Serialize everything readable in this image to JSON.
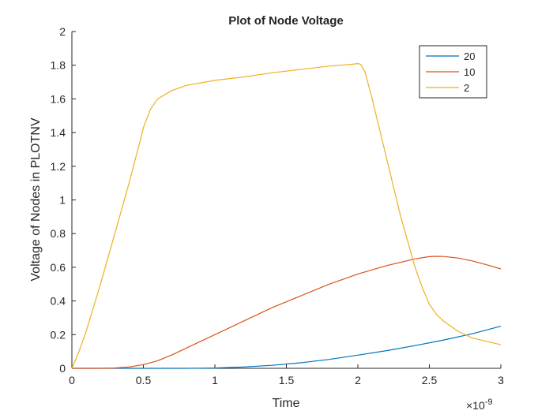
{
  "chart_data": {
    "type": "line",
    "title": "Plot of Node Voltage",
    "xlabel": "Time",
    "ylabel": "Voltage of Nodes in PLOTNV",
    "x_exponent_label": "×10",
    "x_exponent_power": "-9",
    "xlim": [
      0,
      3
    ],
    "ylim": [
      0,
      2
    ],
    "x_scale_factor": 1e-09,
    "xticks": [
      0,
      0.5,
      1,
      1.5,
      2,
      2.5,
      3
    ],
    "xtick_labels": [
      "0",
      "0.5",
      "1",
      "1.5",
      "2",
      "2.5",
      "3"
    ],
    "yticks": [
      0,
      0.2,
      0.4,
      0.6,
      0.8,
      1,
      1.2,
      1.4,
      1.6,
      1.8,
      2
    ],
    "ytick_labels": [
      "0",
      "0.2",
      "0.4",
      "0.6",
      "0.8",
      "1",
      "1.2",
      "1.4",
      "1.6",
      "1.8",
      "2"
    ],
    "grid": false,
    "legend_position": "top-right",
    "series": [
      {
        "name": "20",
        "color": "#0072BD",
        "x": [
          0,
          0.5,
          0.8,
          1.0,
          1.2,
          1.4,
          1.6,
          1.8,
          2.0,
          2.2,
          2.4,
          2.6,
          2.8,
          3.0
        ],
        "y": [
          0,
          0.0,
          0.0,
          0.002,
          0.008,
          0.018,
          0.033,
          0.053,
          0.078,
          0.105,
          0.135,
          0.168,
          0.205,
          0.25
        ]
      },
      {
        "name": "10",
        "color": "#D95319",
        "x": [
          0,
          0.2,
          0.3,
          0.4,
          0.5,
          0.6,
          0.7,
          0.8,
          0.9,
          1.0,
          1.2,
          1.4,
          1.6,
          1.8,
          2.0,
          2.2,
          2.4,
          2.5,
          2.55,
          2.6,
          2.7,
          2.8,
          2.9,
          3.0
        ],
        "y": [
          0,
          0.0,
          0.002,
          0.008,
          0.022,
          0.045,
          0.08,
          0.12,
          0.16,
          0.2,
          0.28,
          0.36,
          0.43,
          0.5,
          0.56,
          0.61,
          0.65,
          0.663,
          0.665,
          0.664,
          0.655,
          0.638,
          0.615,
          0.59
        ]
      },
      {
        "name": "2",
        "color": "#EDB120",
        "x": [
          0,
          0.05,
          0.1,
          0.2,
          0.3,
          0.4,
          0.48,
          0.5,
          0.55,
          0.6,
          0.7,
          0.8,
          1.0,
          1.2,
          1.4,
          1.6,
          1.8,
          1.95,
          2.0,
          2.02,
          2.05,
          2.1,
          2.2,
          2.3,
          2.4,
          2.45,
          2.5,
          2.55,
          2.6,
          2.7,
          2.8,
          2.9,
          3.0
        ],
        "y": [
          0,
          0.1,
          0.22,
          0.5,
          0.8,
          1.1,
          1.36,
          1.43,
          1.54,
          1.6,
          1.65,
          1.68,
          1.71,
          1.73,
          1.755,
          1.775,
          1.795,
          1.805,
          1.81,
          1.805,
          1.76,
          1.6,
          1.25,
          0.9,
          0.6,
          0.48,
          0.38,
          0.32,
          0.28,
          0.22,
          0.18,
          0.16,
          0.14
        ]
      }
    ]
  }
}
